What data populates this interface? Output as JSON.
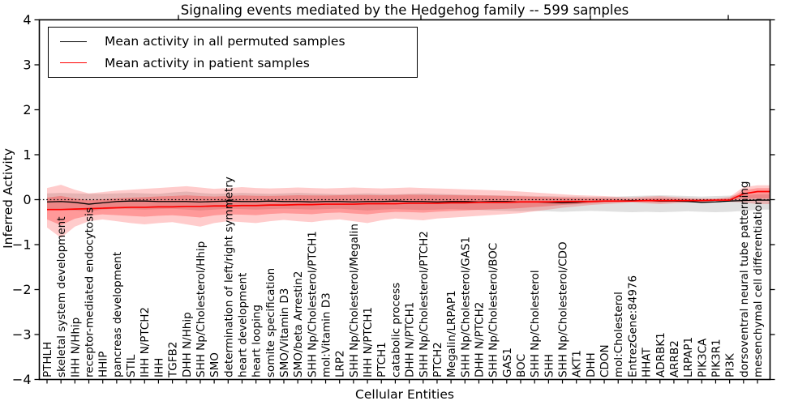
{
  "chart_data": {
    "type": "line",
    "title": "Signaling events mediated by the Hedgehog family -- 599 samples",
    "xlabel": "Cellular Entities",
    "ylabel": "Inferred Activity",
    "ylim": [
      -4,
      4
    ],
    "ytick_values": [
      4,
      3,
      2,
      1,
      0,
      -1,
      -2,
      -3,
      -4
    ],
    "ytick_labels": [
      "4",
      "3",
      "2",
      "1",
      "0",
      "−1",
      "−2",
      "−3",
      "−4"
    ],
    "grid": false,
    "legend_position": "upper-left",
    "legend": [
      {
        "label": "Mean activity in all permuted samples",
        "color": "#000000"
      },
      {
        "label": "Mean activity in patient samples",
        "color": "#ff0000"
      }
    ],
    "zero_line": {
      "value": 0,
      "style": "dotted",
      "color": "#000000"
    },
    "categories": [
      "PTHLH",
      "skeletal system development",
      "IHH N/Hhip",
      "receptor-mediated endocytosis",
      "HHIP",
      "pancreas development",
      "STIL",
      "IHH N/PTCH2",
      "IHH",
      "TGFB2",
      "DHH N/Hhip",
      "SHH Np/Cholesterol/Hhip",
      "SMO",
      "determination of left/right symmetry",
      "heart development",
      "heart looping",
      "somite specification",
      "SMO/Vitamin D3",
      "SMO/beta Arrestin2",
      "SHH Np/Cholesterol/PTCH1",
      "mol:Vitamin D3",
      "LRP2",
      "SHH Np/Cholesterol/Megalin",
      "IHH N/PTCH1",
      "PTCH1",
      "catabolic process",
      "DHH N/PTCH1",
      "SHH Np/Cholesterol/PTCH2",
      "PTCH2",
      "Megalin/LRPAP1",
      "SHH Np/Cholesterol/GAS1",
      "DHH N/PTCH2",
      "SHH Np/Cholesterol/BOC",
      "GAS1",
      "BOC",
      "SHH Np/Cholesterol",
      "SHH",
      "SHH Np/Cholesterol/CDO",
      "AKT1",
      "DHH",
      "CDON",
      "mol:Cholesterol",
      "EntrezGene:84976",
      "HHAT",
      "ADRBK1",
      "ARRB2",
      "LRPAP1",
      "PIK3CA",
      "PIK3R1",
      "PI3K",
      "dorsoventral neural tube patterning",
      "mesenchymal cell differentiation"
    ],
    "series": [
      {
        "name": "Mean activity in all permuted samples",
        "color": "#000000",
        "values": [
          -0.05,
          -0.04,
          -0.06,
          -0.1,
          -0.07,
          -0.04,
          -0.03,
          -0.03,
          -0.04,
          -0.04,
          -0.04,
          -0.05,
          -0.04,
          -0.03,
          -0.04,
          -0.04,
          -0.03,
          -0.04,
          -0.04,
          -0.05,
          -0.04,
          -0.04,
          -0.05,
          -0.04,
          -0.04,
          -0.03,
          -0.04,
          -0.04,
          -0.05,
          -0.04,
          -0.04,
          -0.05,
          -0.04,
          -0.04,
          -0.05,
          -0.05,
          -0.06,
          -0.07,
          -0.06,
          -0.04,
          -0.03,
          -0.03,
          -0.02,
          -0.02,
          -0.03,
          -0.03,
          -0.04,
          -0.06,
          -0.05,
          -0.03,
          -0.02,
          -0.01
        ]
      },
      {
        "name": "Mean activity in patient samples",
        "color": "#ff0000",
        "values": [
          -0.22,
          -0.22,
          -0.21,
          -0.2,
          -0.19,
          -0.18,
          -0.17,
          -0.17,
          -0.16,
          -0.16,
          -0.15,
          -0.15,
          -0.14,
          -0.14,
          -0.13,
          -0.13,
          -0.12,
          -0.12,
          -0.11,
          -0.11,
          -0.1,
          -0.1,
          -0.1,
          -0.09,
          -0.09,
          -0.09,
          -0.08,
          -0.08,
          -0.08,
          -0.07,
          -0.07,
          -0.06,
          -0.06,
          -0.06,
          -0.05,
          -0.05,
          -0.05,
          -0.04,
          -0.04,
          -0.04,
          -0.03,
          -0.03,
          -0.03,
          -0.02,
          -0.02,
          -0.02,
          -0.02,
          -0.02,
          -0.01,
          -0.01,
          0.13,
          0.18
        ]
      }
    ],
    "bands": [
      {
        "name": "permuted samples range",
        "color": "#999999",
        "opacity": 0.3,
        "upper": [
          0.14,
          0.15,
          0.14,
          0.13,
          0.13,
          0.14,
          0.15,
          0.14,
          0.13,
          0.16,
          0.18,
          0.15,
          0.13,
          0.14,
          0.15,
          0.14,
          0.13,
          0.14,
          0.15,
          0.14,
          0.13,
          0.12,
          0.13,
          0.14,
          0.13,
          0.12,
          0.13,
          0.14,
          0.13,
          0.12,
          0.11,
          0.1,
          0.1,
          0.09,
          0.09,
          0.08,
          0.08,
          0.07,
          0.07,
          0.06,
          0.06,
          0.07,
          0.08,
          0.09,
          0.1,
          0.09,
          0.08,
          0.07,
          0.08,
          0.09,
          0.1,
          0.12
        ],
        "lower": [
          -0.2,
          -0.22,
          -0.24,
          -0.26,
          -0.22,
          -0.2,
          -0.21,
          -0.22,
          -0.21,
          -0.2,
          -0.22,
          -0.24,
          -0.22,
          -0.2,
          -0.21,
          -0.22,
          -0.21,
          -0.2,
          -0.21,
          -0.22,
          -0.21,
          -0.2,
          -0.22,
          -0.24,
          -0.22,
          -0.21,
          -0.22,
          -0.23,
          -0.22,
          -0.21,
          -0.22,
          -0.23,
          -0.24,
          -0.25,
          -0.26,
          -0.25,
          -0.26,
          -0.27,
          -0.26,
          -0.25,
          -0.26,
          -0.27,
          -0.28,
          -0.27,
          -0.28,
          -0.27,
          -0.26,
          -0.27,
          -0.28,
          -0.27,
          -0.25,
          -0.22
        ]
      },
      {
        "name": "patient samples range",
        "color": "#ff0000",
        "opacity": 0.2,
        "upper": [
          0.26,
          0.33,
          0.22,
          0.14,
          0.17,
          0.2,
          0.22,
          0.24,
          0.26,
          0.28,
          0.3,
          0.27,
          0.24,
          0.26,
          0.28,
          0.26,
          0.25,
          0.26,
          0.27,
          0.26,
          0.25,
          0.26,
          0.27,
          0.26,
          0.25,
          0.26,
          0.27,
          0.26,
          0.25,
          0.24,
          0.23,
          0.22,
          0.21,
          0.2,
          0.18,
          0.16,
          0.14,
          0.12,
          0.1,
          0.09,
          0.08,
          0.06,
          0.05,
          0.07,
          0.08,
          0.06,
          0.04,
          0.03,
          0.03,
          0.06,
          0.28,
          0.32
        ],
        "lower": [
          -0.62,
          -0.85,
          -0.6,
          -0.48,
          -0.44,
          -0.48,
          -0.52,
          -0.55,
          -0.52,
          -0.5,
          -0.55,
          -0.6,
          -0.52,
          -0.48,
          -0.5,
          -0.52,
          -0.48,
          -0.45,
          -0.48,
          -0.5,
          -0.46,
          -0.44,
          -0.48,
          -0.52,
          -0.46,
          -0.42,
          -0.44,
          -0.46,
          -0.42,
          -0.4,
          -0.38,
          -0.36,
          -0.34,
          -0.32,
          -0.3,
          -0.26,
          -0.22,
          -0.18,
          -0.15,
          -0.12,
          -0.1,
          -0.08,
          -0.06,
          -0.08,
          -0.1,
          -0.08,
          -0.06,
          -0.05,
          -0.04,
          -0.05,
          -0.06,
          -0.1
        ]
      }
    ]
  }
}
